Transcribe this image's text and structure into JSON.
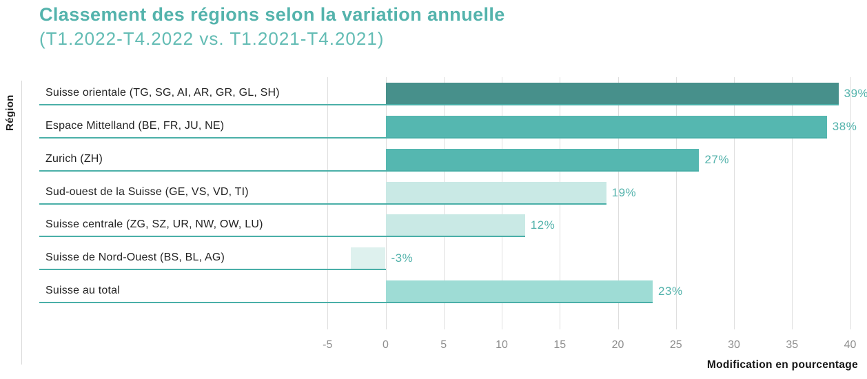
{
  "header": {
    "title": "Classement des régions selon la variation annuelle",
    "subtitle": "(T1.2022-T4.2022 vs. T1.2021-T4.2021)"
  },
  "colors": {
    "title_text": "#54b3ac",
    "subtitle_text": "#63bcb4",
    "baseline": "#4aafa8",
    "value_label_text": "#52b2ab",
    "gridline": "#dedede",
    "axis_line": "#d9d9d9",
    "tick_label_text": "#8f8f8f",
    "dark_text": "#1c1c1c"
  },
  "chart_data": {
    "type": "bar",
    "orientation": "horizontal",
    "title": "Classement des régions selon la variation annuelle",
    "subtitle": "(T1.2022-T4.2022 vs. T1.2021-T4.2021)",
    "xlabel": "Modification en pourcentage",
    "ylabel": "Région",
    "grid": true,
    "legend": false,
    "xlim": [
      -7.5,
      40
    ],
    "xticks": [
      -5,
      0,
      5,
      10,
      15,
      20,
      25,
      30,
      35,
      40
    ],
    "categories": [
      "Suisse orientale (TG, SG, AI, AR, GR, GL, SH)",
      "Espace Mittelland (BE, FR, JU, NE)",
      "Zurich (ZH)",
      "Sud-ouest de la Suisse (GE, VS, VD, TI)",
      "Suisse centrale (ZG, SZ, UR, NW, OW, LU)",
      "Suisse de Nord-Ouest (BS, BL, AG)",
      "Suisse au total"
    ],
    "values": [
      39,
      38,
      27,
      19,
      12,
      -3,
      23
    ],
    "value_labels": [
      "39%",
      "38%",
      "27%",
      "19%",
      "12%",
      "-3%",
      "23%"
    ],
    "bar_colors": [
      "#47908b",
      "#55b7b0",
      "#55b7b0",
      "#c9e9e5",
      "#c9e9e5",
      "#def1ee",
      "#9edcd5"
    ]
  }
}
